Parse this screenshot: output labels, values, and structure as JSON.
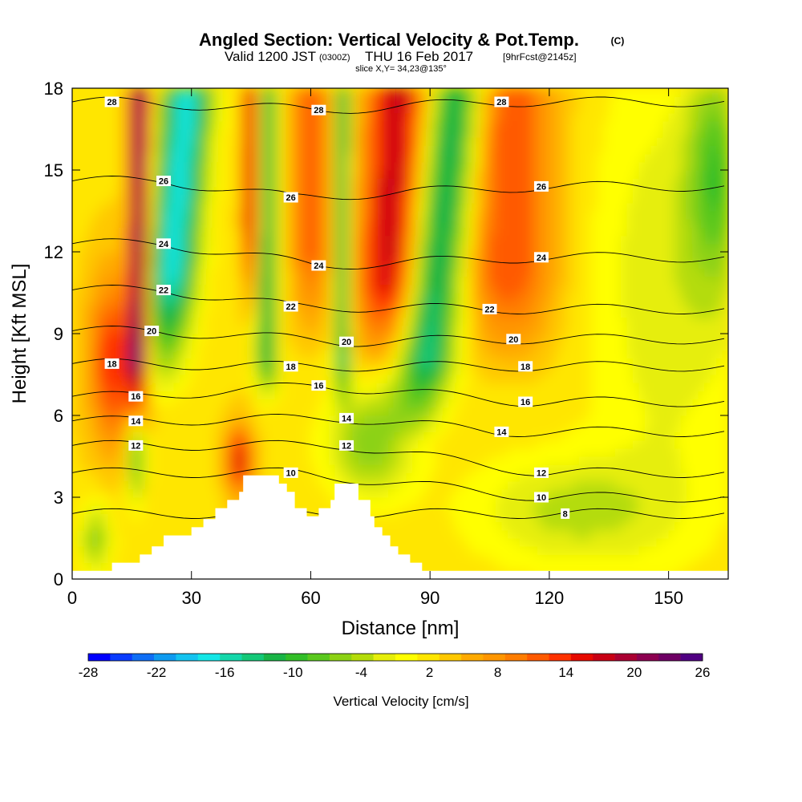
{
  "header": {
    "title": "Angled Section: Vertical Velocity & Pot.Temp.",
    "title_suffix": "(C)",
    "valid_prefix": "Valid 1200 JST",
    "valid_zulu": "(0300Z)",
    "valid_date": "THU 16 Feb 2017",
    "forecast": "[9hrFcst@2145z]",
    "slice": "slice X,Y= 34,23@135°"
  },
  "chart_data": {
    "type": "heatmap",
    "title": "Angled Section: Vertical Velocity & Pot.Temp. (C)",
    "xlabel": "Distance [nm]",
    "ylabel": "Height [Kft MSL]",
    "xlim": [
      0,
      165
    ],
    "ylim": [
      0,
      18
    ],
    "x_ticks": [
      "0",
      "30",
      "60",
      "90",
      "120",
      "150"
    ],
    "y_ticks": [
      "0",
      "3",
      "6",
      "9",
      "12",
      "15",
      "18"
    ],
    "grid": false,
    "colorbar": {
      "label": "Vertical Velocity [cm/s]",
      "range": [
        -28,
        26
      ],
      "tick_labels": [
        "-28",
        "-22",
        "-16",
        "-10",
        "-4",
        "2",
        "8",
        "14",
        "20",
        "26"
      ],
      "colors": [
        "#0000ff",
        "#0a3cff",
        "#0f6ef5",
        "#0f9bf0",
        "#14c3f0",
        "#14e6e6",
        "#14d7aa",
        "#14c878",
        "#19b446",
        "#32be28",
        "#5ac81e",
        "#8cd214",
        "#b4dc0a",
        "#e6ee0a",
        "#ffff00",
        "#ffe600",
        "#ffc800",
        "#ffaa00",
        "#ff9600",
        "#ff7d00",
        "#ff5a00",
        "#ff3200",
        "#e60a00",
        "#c80014",
        "#aa0032",
        "#8c0050",
        "#6e0064",
        "#500082"
      ]
    },
    "contour_labels": [
      {
        "text": "28",
        "x": 10,
        "y": 17.5
      },
      {
        "text": "28",
        "x": 62,
        "y": 17.2
      },
      {
        "text": "28",
        "x": 108,
        "y": 17.5
      },
      {
        "text": "26",
        "x": 23,
        "y": 14.6
      },
      {
        "text": "26",
        "x": 55,
        "y": 14.0
      },
      {
        "text": "26",
        "x": 118,
        "y": 14.4
      },
      {
        "text": "24",
        "x": 23,
        "y": 12.3
      },
      {
        "text": "24",
        "x": 62,
        "y": 11.5
      },
      {
        "text": "24",
        "x": 118,
        "y": 11.8
      },
      {
        "text": "22",
        "x": 23,
        "y": 10.6
      },
      {
        "text": "22",
        "x": 55,
        "y": 10.0
      },
      {
        "text": "22",
        "x": 105,
        "y": 9.9
      },
      {
        "text": "20",
        "x": 20,
        "y": 9.1
      },
      {
        "text": "20",
        "x": 69,
        "y": 8.7
      },
      {
        "text": "20",
        "x": 111,
        "y": 8.8
      },
      {
        "text": "18",
        "x": 10,
        "y": 7.9
      },
      {
        "text": "18",
        "x": 55,
        "y": 7.8
      },
      {
        "text": "18",
        "x": 114,
        "y": 7.8
      },
      {
        "text": "16",
        "x": 16,
        "y": 6.7
      },
      {
        "text": "16",
        "x": 62,
        "y": 7.1
      },
      {
        "text": "16",
        "x": 114,
        "y": 6.5
      },
      {
        "text": "14",
        "x": 16,
        "y": 5.8
      },
      {
        "text": "14",
        "x": 69,
        "y": 5.9
      },
      {
        "text": "14",
        "x": 108,
        "y": 5.4
      },
      {
        "text": "12",
        "x": 16,
        "y": 4.9
      },
      {
        "text": "12",
        "x": 69,
        "y": 4.9
      },
      {
        "text": "12",
        "x": 118,
        "y": 3.9
      },
      {
        "text": "10",
        "x": 55,
        "y": 3.9
      },
      {
        "text": "10",
        "x": 118,
        "y": 3.0
      },
      {
        "text": "8",
        "x": 124,
        "y": 2.4
      }
    ],
    "terrain_profile": [
      [
        0,
        0.3
      ],
      [
        10,
        0.3
      ],
      [
        10,
        0.6
      ],
      [
        17,
        0.6
      ],
      [
        17,
        0.9
      ],
      [
        20,
        0.9
      ],
      [
        20,
        1.2
      ],
      [
        23,
        1.2
      ],
      [
        23,
        1.6
      ],
      [
        30,
        1.6
      ],
      [
        30,
        1.9
      ],
      [
        33,
        1.9
      ],
      [
        33,
        2.2
      ],
      [
        36,
        2.2
      ],
      [
        36,
        2.6
      ],
      [
        39,
        2.6
      ],
      [
        39,
        2.9
      ],
      [
        42,
        2.9
      ],
      [
        42,
        3.2
      ],
      [
        43,
        3.2
      ],
      [
        43,
        3.8
      ],
      [
        52,
        3.8
      ],
      [
        52,
        3.5
      ],
      [
        54,
        3.5
      ],
      [
        54,
        3.2
      ],
      [
        56,
        3.2
      ],
      [
        56,
        2.6
      ],
      [
        59,
        2.6
      ],
      [
        59,
        2.3
      ],
      [
        62,
        2.3
      ],
      [
        62,
        2.6
      ],
      [
        65,
        2.6
      ],
      [
        65,
        2.9
      ],
      [
        66,
        2.9
      ],
      [
        66,
        3.5
      ],
      [
        72,
        3.5
      ],
      [
        72,
        2.9
      ],
      [
        75,
        2.9
      ],
      [
        75,
        2.3
      ],
      [
        76,
        2.3
      ],
      [
        76,
        1.9
      ],
      [
        78,
        1.9
      ],
      [
        78,
        1.6
      ],
      [
        80,
        1.6
      ],
      [
        80,
        1.2
      ],
      [
        82,
        1.2
      ],
      [
        82,
        0.9
      ],
      [
        85,
        0.9
      ],
      [
        85,
        0.6
      ],
      [
        88,
        0.6
      ],
      [
        88,
        0.3
      ],
      [
        165,
        0.3
      ]
    ]
  }
}
